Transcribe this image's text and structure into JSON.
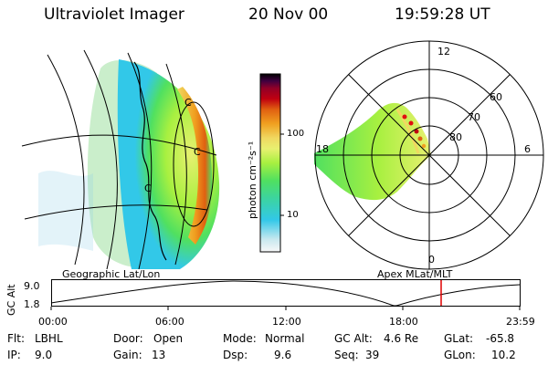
{
  "header": {
    "instrument": "Ultraviolet Imager",
    "date": "20 Nov 00",
    "time": "19:59:28 UT"
  },
  "colorbar": {
    "unit_label": "photon cm⁻²s⁻¹",
    "ticks": [
      "100",
      "10"
    ],
    "colors": [
      "#f8f8f8",
      "#c8e8ef",
      "#32c8e8",
      "#3cd4a0",
      "#50e060",
      "#a8f040",
      "#e8f070",
      "#f0d860",
      "#f0a020",
      "#e06010",
      "#c00010",
      "#900028",
      "#400040",
      "#000000"
    ]
  },
  "geo_panel": {
    "labels": [
      "C",
      "C",
      "C"
    ]
  },
  "polar_plot": {
    "hour_labels": {
      "h12": "12",
      "h18": "18",
      "h6": "6",
      "h0": "0"
    },
    "lat_labels": {
      "l60": "60",
      "l70": "70",
      "l80": "80"
    }
  },
  "altitude_plot": {
    "y_label": "GC Alt",
    "y_ticks": {
      "top": "9.0",
      "bottom": "1.8"
    },
    "left_title": "Geographic Lat/Lon",
    "right_title": "Apex MLat/MLT",
    "x_ticks": [
      "00:00",
      "06:00",
      "12:00",
      "18:00",
      "23:59"
    ],
    "current_time_color": "#e00000"
  },
  "status": {
    "flt_label": "Flt:",
    "flt_value": "LBHL",
    "ip_label": "IP:",
    "ip_value": "9.0",
    "door_label": "Door:",
    "door_value": "Open",
    "gain_label": "Gain:",
    "gain_value": "13",
    "mode_label": "Mode:",
    "mode_value": "Normal",
    "dsp_label": "Dsp:",
    "dsp_value": "9.6",
    "gcalt_label": "GC Alt:",
    "gcalt_value": "4.6 Re",
    "seq_label": "Seq:",
    "seq_value": "39",
    "glat_label": "GLat:",
    "glat_value": "-65.8",
    "glon_label": "GLon:",
    "glon_value": "10.2"
  }
}
